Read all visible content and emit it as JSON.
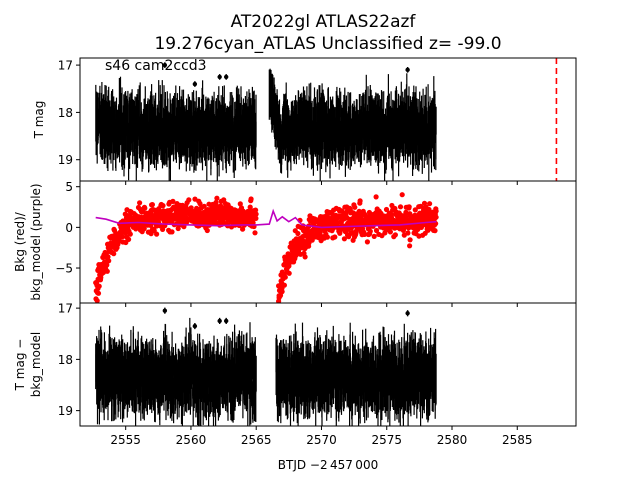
{
  "title_line1": "AT2022gl  ATLAS22azf",
  "title_line2": "19.276cyan_ATLAS Unclassified z= -99.0",
  "annotation": "s46 cam2ccd3",
  "xlabel": "BTJD −2 457 000",
  "colors": {
    "data": "#000000",
    "background": "#ff0000",
    "model": "#bf00bf",
    "marker_line": "#ff0000",
    "frame": "#000000"
  },
  "chart_data": [
    {
      "type": "scatter",
      "ylabel": "T mag",
      "ylim": [
        19.45,
        16.85
      ],
      "xlim": [
        2551.5,
        2589.5
      ],
      "y_ticks": [
        17,
        18,
        19
      ],
      "y_tick_labels": [
        "17",
        "18",
        "19"
      ],
      "inverted_y": true,
      "vertical_line": {
        "x": 2588.0,
        "style": "dashed",
        "color": "red"
      },
      "series": [
        {
          "color": "black",
          "segments": [
            {
              "x_start": 2552.7,
              "x_end": 2565.0,
              "y_center": 18.35,
              "y_spread": 0.5
            },
            {
              "x_start": 2566.0,
              "x_end": 2567.0,
              "y_center": 17.9,
              "y_spread": 0.3,
              "note_shape": "dip-and-recover"
            },
            {
              "x_start": 2567.0,
              "x_end": 2578.8,
              "y_center": 18.35,
              "y_spread": 0.5
            }
          ],
          "outliers": [
            {
              "x": 2558.0,
              "y": 17.0
            },
            {
              "x": 2560.3,
              "y": 17.4
            },
            {
              "x": 2562.2,
              "y": 17.25
            },
            {
              "x": 2562.7,
              "y": 17.25
            },
            {
              "x": 2576.6,
              "y": 17.1
            }
          ]
        }
      ]
    },
    {
      "type": "scatter",
      "ylabel": "Bkg (red)/\nbkg_model (purple)",
      "ylim": [
        -9.3,
        5.7
      ],
      "xlim": [
        2551.5,
        2589.5
      ],
      "y_ticks": [
        5,
        0,
        -5
      ],
      "y_tick_labels": [
        "5",
        "0",
        "−5"
      ],
      "series": [
        {
          "color": "red",
          "segments": [
            {
              "x_start": 2552.7,
              "x_end": 2565.0,
              "start_level": -8.0,
              "plateau": 1.5,
              "spread": 1.6
            },
            {
              "x_start": 2566.7,
              "x_end": 2578.8,
              "start_level": -8.5,
              "plateau": 0.8,
              "spread": 1.8
            }
          ]
        },
        {
          "color": "purple",
          "points": [
            [
              2552.7,
              1.2
            ],
            [
              2553.5,
              1.0
            ],
            [
              2554.5,
              0.5
            ],
            [
              2556.0,
              0.6
            ],
            [
              2558.0,
              0.4
            ],
            [
              2560.0,
              0.3
            ],
            [
              2562.0,
              0.2
            ],
            [
              2564.0,
              0.3
            ],
            [
              2565.0,
              0.3
            ],
            [
              2566.0,
              0.4
            ],
            [
              2566.3,
              2.0
            ],
            [
              2566.6,
              0.8
            ],
            [
              2567.0,
              1.3
            ],
            [
              2567.5,
              0.7
            ],
            [
              2568.0,
              1.2
            ],
            [
              2568.5,
              0.3
            ],
            [
              2570.0,
              0.0
            ],
            [
              2572.0,
              0.1
            ],
            [
              2574.0,
              0.2
            ],
            [
              2576.0,
              0.3
            ],
            [
              2578.0,
              0.6
            ],
            [
              2578.8,
              0.7
            ]
          ]
        }
      ]
    },
    {
      "type": "scatter",
      "ylabel": "T mag −\nbkg_model",
      "ylim": [
        19.3,
        16.9
      ],
      "xlim": [
        2551.5,
        2589.5
      ],
      "x_ticks": [
        2555,
        2560,
        2565,
        2570,
        2575,
        2580,
        2585
      ],
      "x_tick_labels": [
        "2555",
        "2560",
        "2565",
        "2570",
        "2575",
        "2580",
        "2585"
      ],
      "y_ticks": [
        17,
        18,
        19
      ],
      "y_tick_labels": [
        "17",
        "18",
        "19"
      ],
      "inverted_y": true,
      "series": [
        {
          "color": "black",
          "segments": [
            {
              "x_start": 2552.7,
              "x_end": 2565.0,
              "y_center": 18.35,
              "y_spread": 0.5
            },
            {
              "x_start": 2566.5,
              "x_end": 2578.8,
              "y_center": 18.35,
              "y_spread": 0.5
            }
          ],
          "outliers": [
            {
              "x": 2558.0,
              "y": 17.05
            },
            {
              "x": 2560.3,
              "y": 17.35
            },
            {
              "x": 2562.2,
              "y": 17.25
            },
            {
              "x": 2562.7,
              "y": 17.25
            },
            {
              "x": 2576.6,
              "y": 17.1
            }
          ]
        }
      ]
    }
  ]
}
